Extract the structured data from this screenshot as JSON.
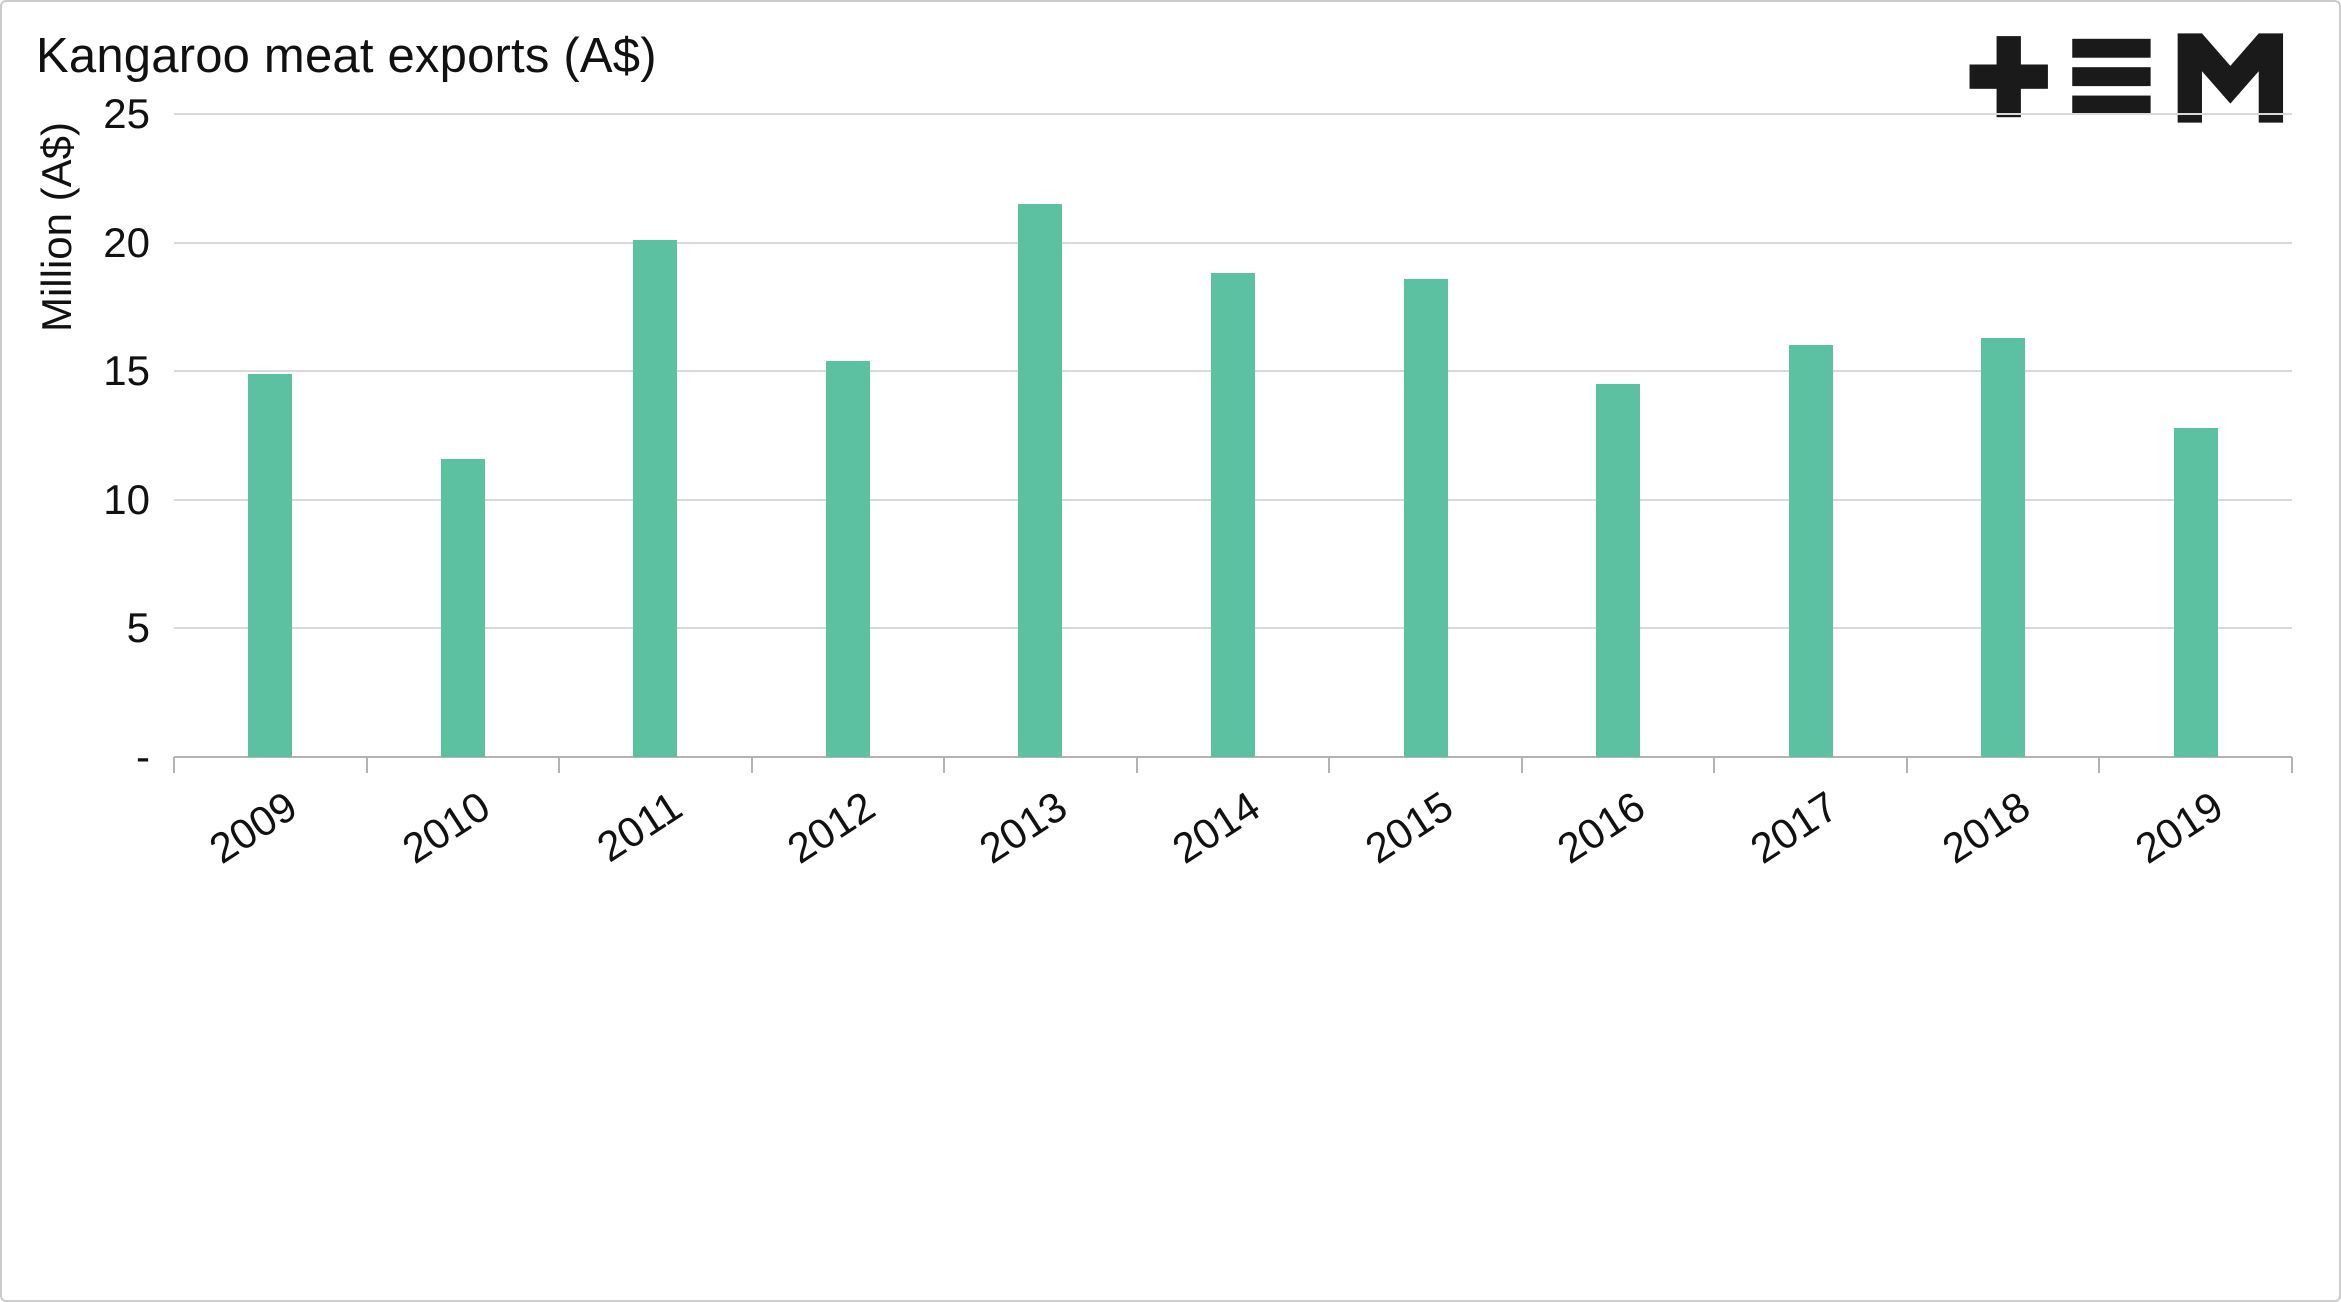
{
  "header": {
    "title": "Kangaroo meat exports (A$)",
    "logo": {
      "name": "tem-logo",
      "glyphs": "+≡M"
    }
  },
  "chart_data": {
    "type": "bar",
    "title": "Kangaroo meat exports (A$)",
    "categories": [
      "2009",
      "2010",
      "2011",
      "2012",
      "2013",
      "2014",
      "2015",
      "2016",
      "2017",
      "2018",
      "2019"
    ],
    "values": [
      14.9,
      11.6,
      20.1,
      15.4,
      21.5,
      18.8,
      18.6,
      14.5,
      16.0,
      16.3,
      12.8
    ],
    "xlabel": "",
    "ylabel": "Million (A$)",
    "ylim": [
      0,
      25
    ],
    "ytick_interval": 5,
    "ytick_labels": [
      "-",
      "5",
      "10",
      "15",
      "20",
      "25"
    ],
    "grid": true,
    "legend": null
  },
  "colors": {
    "bar": "#5cc1a0",
    "grid": "#d9d9d9",
    "axis": "#b3b3b3",
    "text": "#111111",
    "border": "#cccccc",
    "logo": "#1a1a1a"
  }
}
